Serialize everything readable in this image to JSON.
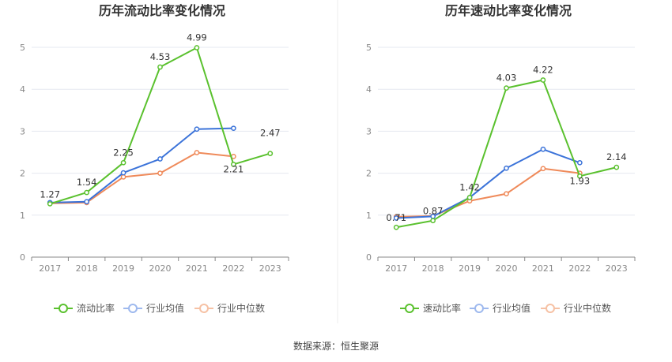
{
  "source": "数据来源：恒生聚源",
  "colors": {
    "green": "#5ac12e",
    "blue": "#3b73d9",
    "orange": "#ef8a5a",
    "grid": "#e6e8f0",
    "axis": "#888888"
  },
  "chart_data": [
    {
      "type": "line",
      "title": "历年流动比率变化情况",
      "categories": [
        "2017",
        "2018",
        "2019",
        "2020",
        "2021",
        "2022",
        "2023"
      ],
      "ylim": [
        0,
        5
      ],
      "yticks": [
        "0",
        "1",
        "2",
        "3",
        "4",
        "5"
      ],
      "grid": true,
      "legend_position": "bottom",
      "series": [
        {
          "name": "流动比率",
          "values": [
            1.27,
            1.54,
            2.25,
            4.53,
            4.99,
            2.21,
            2.47
          ],
          "labels": [
            "1.27",
            "1.54",
            "2.25",
            "4.53",
            "4.99",
            "2.21",
            "2.47"
          ],
          "color": "#5ac12e"
        },
        {
          "name": "行业均值",
          "values": [
            1.3,
            1.32,
            2.01,
            2.34,
            3.05,
            3.07,
            null
          ],
          "color": "#3b73d9"
        },
        {
          "name": "行业中位数",
          "values": [
            1.28,
            1.3,
            1.91,
            2.0,
            2.49,
            2.4,
            null
          ],
          "color": "#ef8a5a"
        }
      ]
    },
    {
      "type": "line",
      "title": "历年速动比率变化情况",
      "categories": [
        "2017",
        "2018",
        "2019",
        "2020",
        "2021",
        "2022",
        "2023"
      ],
      "ylim": [
        0,
        5
      ],
      "yticks": [
        "0",
        "1",
        "2",
        "3",
        "4",
        "5"
      ],
      "grid": true,
      "legend_position": "bottom",
      "series": [
        {
          "name": "速动比率",
          "values": [
            0.71,
            0.87,
            1.42,
            4.03,
            4.22,
            1.93,
            2.14
          ],
          "labels": [
            "0.71",
            "0.87",
            "1.42",
            "4.03",
            "4.22",
            "1.93",
            "2.14"
          ],
          "color": "#5ac12e"
        },
        {
          "name": "行业均值",
          "values": [
            0.93,
            0.97,
            1.42,
            2.12,
            2.57,
            2.25,
            null
          ],
          "color": "#3b73d9"
        },
        {
          "name": "行业中位数",
          "values": [
            0.96,
            0.98,
            1.34,
            1.51,
            2.11,
            2.0,
            null
          ],
          "color": "#ef8a5a"
        }
      ]
    }
  ]
}
